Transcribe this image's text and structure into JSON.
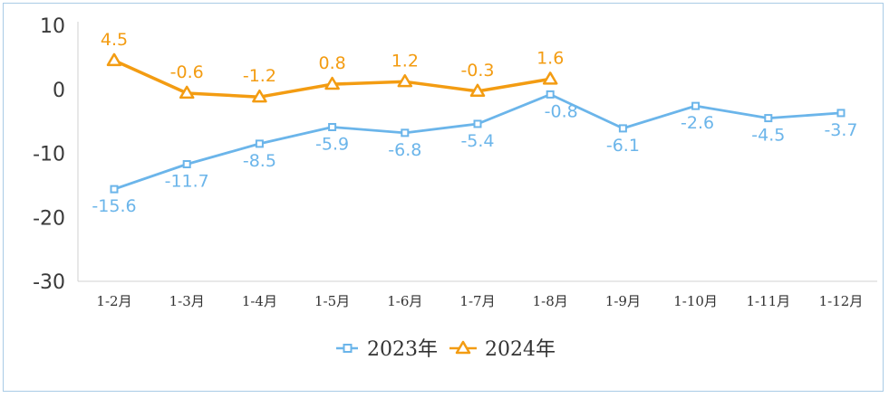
{
  "chart_data": {
    "type": "line",
    "categories": [
      "1-2月",
      "1-3月",
      "1-4月",
      "1-5月",
      "1-6月",
      "1-7月",
      "1-8月",
      "1-9月",
      "1-10月",
      "1-11月",
      "1-12月"
    ],
    "ylim": [
      -30,
      10
    ],
    "yticks": [
      10,
      0,
      -10,
      -20,
      -30
    ],
    "ytick_labels": [
      "10",
      "0",
      "-10",
      "-20",
      "-30"
    ],
    "grid": false,
    "legend_position": "bottom",
    "series": [
      {
        "name": "2023年",
        "color": "#6bb5ea",
        "marker": "square",
        "values": [
          -15.6,
          -11.7,
          -8.5,
          -5.9,
          -6.8,
          -5.4,
          -0.8,
          -6.1,
          -2.6,
          -4.5,
          -3.7
        ],
        "labels": [
          "-15.6",
          "-11.7",
          "-8.5",
          "-5.9",
          "-6.8",
          "-5.4",
          "-0.8",
          "-6.1",
          "-2.6",
          "-4.5",
          "-3.7"
        ]
      },
      {
        "name": "2024年",
        "color": "#f39c12",
        "marker": "triangle",
        "values": [
          4.5,
          -0.6,
          -1.2,
          0.8,
          1.2,
          -0.3,
          1.6,
          null,
          null,
          null,
          null
        ],
        "labels": [
          "4.5",
          "-0.6",
          "-1.2",
          "0.8",
          "1.2",
          "-0.3",
          "1.6",
          null,
          null,
          null,
          null
        ]
      }
    ]
  }
}
